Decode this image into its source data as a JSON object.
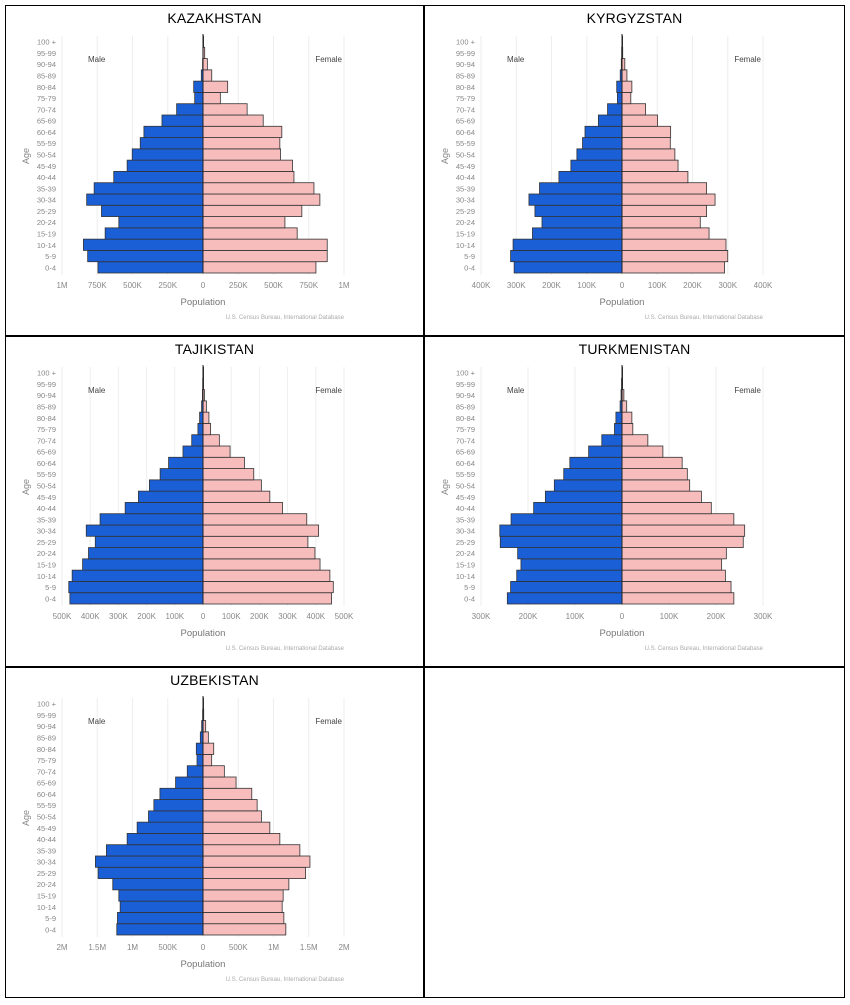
{
  "colors": {
    "male": "#1a5fd6",
    "female": "#f7bcbc",
    "outline": "#333333",
    "grid": "#eeeeee",
    "tick_text": "#888888"
  },
  "chart_data": [
    {
      "type": "bar",
      "title": "KAZAKHSTAN",
      "xlabel": "Population",
      "ylabel": "Age",
      "male_label": "Male",
      "female_label": "Female",
      "source": "U.S. Census Bureau, International Database",
      "unit": "thousands",
      "xlim": [
        -1000,
        1000
      ],
      "tick_values": [
        -1000,
        -750,
        -500,
        -250,
        0,
        250,
        500,
        750,
        1000
      ],
      "tick_labels": [
        "1M",
        "750K",
        "500K",
        "250K",
        "0",
        "250K",
        "500K",
        "750K",
        "1M"
      ],
      "categories": [
        "0-4",
        "5-9",
        "10-14",
        "15-19",
        "20-24",
        "25-29",
        "30-34",
        "35-39",
        "40-44",
        "45-49",
        "50-54",
        "55-59",
        "60-64",
        "65-69",
        "70-74",
        "75-79",
        "80-84",
        "85-89",
        "90-94",
        "95-99",
        "100 +"
      ],
      "series": [
        {
          "name": "Male",
          "values": [
            745,
            818,
            848,
            694,
            597,
            720,
            825,
            772,
            633,
            538,
            502,
            445,
            419,
            291,
            187,
            59,
            66,
            12,
            3,
            1,
            0
          ]
        },
        {
          "name": "Female",
          "values": [
            801,
            881,
            881,
            668,
            581,
            701,
            829,
            787,
            645,
            635,
            550,
            545,
            559,
            427,
            313,
            123,
            175,
            62,
            31,
            12,
            3
          ]
        }
      ]
    },
    {
      "type": "bar",
      "title": "KYRGYZSTAN",
      "xlabel": "Population",
      "ylabel": "Age",
      "male_label": "Male",
      "female_label": "Female",
      "source": "U.S. Census Bureau, International Database",
      "unit": "thousands",
      "xlim": [
        -400,
        400
      ],
      "tick_values": [
        -400,
        -300,
        -200,
        -100,
        0,
        100,
        200,
        300,
        400
      ],
      "tick_labels": [
        "400K",
        "300K",
        "200K",
        "100K",
        "0",
        "100K",
        "200K",
        "300K",
        "400K"
      ],
      "categories": [
        "0-4",
        "5-9",
        "10-14",
        "15-19",
        "20-24",
        "25-29",
        "30-34",
        "35-39",
        "40-44",
        "45-49",
        "50-54",
        "55-59",
        "60-64",
        "65-69",
        "70-74",
        "75-79",
        "80-84",
        "85-89",
        "90-94",
        "95-99",
        "100 +"
      ],
      "series": [
        {
          "name": "Male",
          "values": [
            306,
            316,
            309,
            254,
            227,
            247,
            264,
            234,
            179,
            145,
            128,
            112,
            105,
            67,
            41,
            13,
            15,
            5,
            2,
            1,
            0
          ]
        },
        {
          "name": "Female",
          "values": [
            291,
            300,
            295,
            247,
            222,
            240,
            264,
            240,
            187,
            159,
            150,
            137,
            138,
            101,
            67,
            25,
            28,
            14,
            8,
            2,
            0
          ]
        }
      ]
    },
    {
      "type": "bar",
      "title": "TAJIKISTAN",
      "xlabel": "Population",
      "ylabel": "Age",
      "male_label": "Male",
      "female_label": "Female",
      "source": "U.S. Census Bureau, International Database",
      "unit": "thousands",
      "xlim": [
        -500,
        500
      ],
      "tick_values": [
        -500,
        -400,
        -300,
        -200,
        -100,
        0,
        100,
        200,
        300,
        400,
        500
      ],
      "tick_labels": [
        "500K",
        "400K",
        "300K",
        "200K",
        "100K",
        "0",
        "100K",
        "200K",
        "300K",
        "400K",
        "500K"
      ],
      "categories": [
        "0-4",
        "5-9",
        "10-14",
        "15-19",
        "20-24",
        "25-29",
        "30-34",
        "35-39",
        "40-44",
        "45-49",
        "50-54",
        "55-59",
        "60-64",
        "65-69",
        "70-74",
        "75-79",
        "80-84",
        "85-89",
        "90-94",
        "95-99",
        "100 +"
      ],
      "series": [
        {
          "name": "Male",
          "values": [
            472,
            476,
            464,
            427,
            406,
            382,
            414,
            365,
            276,
            229,
            190,
            152,
            122,
            71,
            40,
            18,
            12,
            5,
            2,
            1,
            0
          ]
        },
        {
          "name": "Female",
          "values": [
            456,
            462,
            450,
            415,
            397,
            372,
            410,
            368,
            282,
            237,
            207,
            180,
            147,
            96,
            58,
            27,
            21,
            12,
            5,
            2,
            0
          ]
        }
      ]
    },
    {
      "type": "bar",
      "title": "TURKMENISTAN",
      "xlabel": "Population",
      "ylabel": "Age",
      "male_label": "Male",
      "female_label": "Female",
      "source": "U.S. Census Bureau, International Database",
      "unit": "thousands",
      "xlim": [
        -300,
        300
      ],
      "tick_values": [
        -300,
        -200,
        -100,
        0,
        100,
        200,
        300
      ],
      "tick_labels": [
        "300K",
        "200K",
        "100K",
        "0",
        "100K",
        "200K",
        "300K"
      ],
      "categories": [
        "0-4",
        "5-9",
        "10-14",
        "15-19",
        "20-24",
        "25-29",
        "30-34",
        "35-39",
        "40-44",
        "45-49",
        "50-54",
        "55-59",
        "60-64",
        "65-69",
        "70-74",
        "75-79",
        "80-84",
        "85-89",
        "90-94",
        "95-99",
        "100 +"
      ],
      "series": [
        {
          "name": "Male",
          "values": [
            244,
            237,
            224,
            215,
            222,
            259,
            260,
            236,
            188,
            163,
            144,
            124,
            111,
            71,
            43,
            16,
            13,
            4,
            2,
            1,
            0
          ]
        },
        {
          "name": "Female",
          "values": [
            238,
            232,
            220,
            212,
            222,
            258,
            261,
            238,
            190,
            169,
            144,
            139,
            128,
            87,
            55,
            23,
            21,
            10,
            4,
            1,
            0
          ]
        }
      ]
    },
    {
      "type": "bar",
      "title": "UZBEKISTAN",
      "xlabel": "Population",
      "ylabel": "Age",
      "male_label": "Male",
      "female_label": "Female",
      "source": "U.S. Census Bureau, International Database",
      "unit": "thousands",
      "xlim": [
        -2000,
        2000
      ],
      "tick_values": [
        -2000,
        -1500,
        -1000,
        -500,
        0,
        500,
        1000,
        1500,
        2000
      ],
      "tick_labels": [
        "2M",
        "1.5M",
        "1M",
        "500K",
        "0",
        "500K",
        "1M",
        "1.5M",
        "2M"
      ],
      "categories": [
        "0-4",
        "5-9",
        "10-14",
        "15-19",
        "20-24",
        "25-29",
        "30-34",
        "35-39",
        "40-44",
        "45-49",
        "50-54",
        "55-59",
        "60-64",
        "65-69",
        "70-74",
        "75-79",
        "80-84",
        "85-89",
        "90-94",
        "95-99",
        "100 +"
      ],
      "series": [
        {
          "name": "Male",
          "values": [
            1223,
            1213,
            1175,
            1194,
            1280,
            1488,
            1526,
            1370,
            1076,
            934,
            773,
            697,
            611,
            389,
            223,
            85,
            95,
            38,
            19,
            5,
            1
          ]
        },
        {
          "name": "Female",
          "values": [
            1175,
            1147,
            1123,
            1137,
            1218,
            1455,
            1517,
            1374,
            1090,
            948,
            829,
            768,
            692,
            469,
            303,
            123,
            152,
            76,
            38,
            10,
            2
          ]
        }
      ]
    }
  ]
}
